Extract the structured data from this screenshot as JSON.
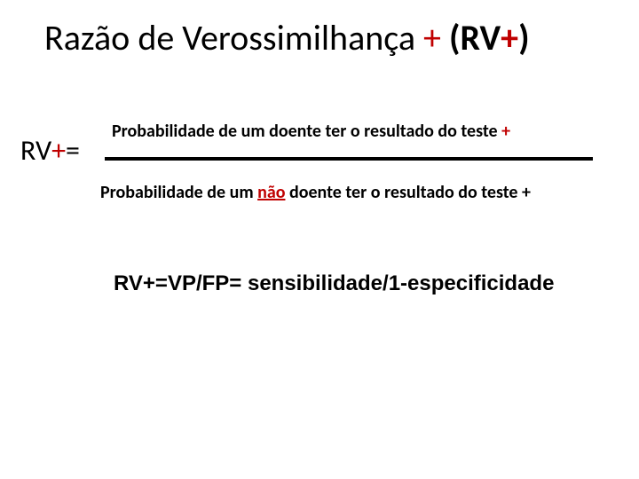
{
  "title": {
    "prefix": "Razão de Verossimilhança ",
    "plus": "+",
    "paren_open": " (RV",
    "paren_plus": "+",
    "paren_close": ")"
  },
  "label": {
    "rv": "RV",
    "plus": "+",
    "eq": "="
  },
  "numerator": {
    "text": "Probabilidade de um doente ter o resultado do teste ",
    "plus": "+"
  },
  "denominator": {
    "before_nao": "Probabilidade de um ",
    "nao": "não",
    "after_nao": " doente ter o resultado do teste +"
  },
  "formula": {
    "text": "RV+=VP/FP= sensibilidade/1-especificidade"
  },
  "colors": {
    "accent": "#c00000",
    "text": "#000000",
    "background": "#ffffff"
  }
}
